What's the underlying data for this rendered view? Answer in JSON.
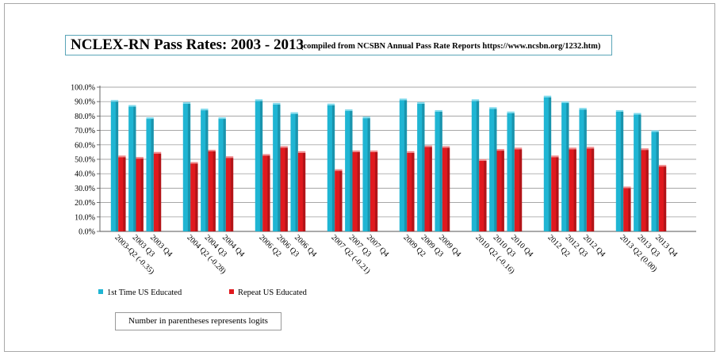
{
  "title": "NCLEX-RN Pass Rates:  2003 - 2013",
  "subtitle": "(compiled from NCSBN Annual Pass Rate Reports https://www.ncsbn.org/1232.htm)",
  "note": "Number in parentheses represents logits",
  "colors": {
    "series1": "#1fb5d3",
    "series2": "#e0191e"
  },
  "chart_data": {
    "type": "bar",
    "ylim": [
      0,
      100
    ],
    "ytick_step": 10,
    "ytick_labels": [
      "0.0%",
      "10.0%",
      "20.0%",
      "30.0%",
      "40.0%",
      "50.0%",
      "60.0%",
      "70.0%",
      "80.0%",
      "90.0%",
      "100.0%"
    ],
    "grid": true,
    "legend": "bottom-left",
    "group_size": 3,
    "categories": [
      "2003-Q2 (-0.35)",
      "2003 Q3",
      "2003 Q4",
      "2004 Q2 (-0.28)",
      "2004 Q3",
      "2004 Q4",
      "2006 Q2",
      "2006 Q3",
      "2006 Q4",
      "2007 Q2 (-0.21)",
      "2007 Q3",
      "2007 Q4",
      "2009 Q2",
      "2009 Q3",
      "2009 Q4",
      "2010 Q2 (-0.16)",
      "2010 Q3",
      "2010 Q4",
      "2012 Q2",
      "2012 Q3",
      "2012 Q4",
      "2013 Q2 (0.00)",
      "2013 Q3",
      "2013 Q4"
    ],
    "series": [
      {
        "name": "1st Time US Educated",
        "values": [
          90,
          86.5,
          78,
          88.5,
          84,
          78,
          90.5,
          88,
          81.5,
          87.5,
          83.5,
          78.5,
          91,
          88.5,
          83,
          90.5,
          85,
          82,
          93,
          89,
          84.5,
          83,
          81,
          69
        ]
      },
      {
        "name": "Repeat US Educated",
        "values": [
          51.5,
          50.5,
          54,
          47,
          55.5,
          51,
          52.5,
          58,
          54.5,
          42,
          55,
          55,
          54.5,
          58.5,
          58,
          49,
          56,
          57,
          51.5,
          57,
          57.5,
          30,
          56.5,
          45
        ]
      }
    ]
  }
}
